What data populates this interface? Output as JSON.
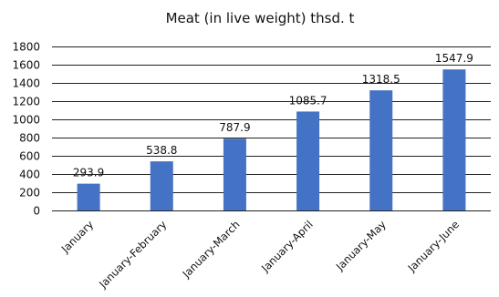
{
  "chart_data": {
    "type": "bar",
    "title": "Meat (in live weight) thsd. t",
    "categories": [
      "January",
      "January-February",
      "January-March",
      "January-April",
      "January-May",
      "January-June"
    ],
    "values": [
      293.9,
      538.8,
      787.9,
      1085.7,
      1318.5,
      1547.9
    ],
    "value_labels": [
      "293.9",
      "538.8",
      "787.9",
      "1085.7",
      "1318.5",
      "1547.9"
    ],
    "xlabel": "",
    "ylabel": "",
    "ylim": [
      0,
      1800
    ],
    "yticks": [
      0,
      200,
      400,
      600,
      800,
      1000,
      1200,
      1400,
      1600,
      1800
    ],
    "grid": true,
    "legend": "none",
    "bar_color": "#4472C4"
  }
}
